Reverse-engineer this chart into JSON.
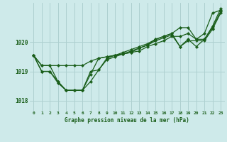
{
  "title": "Graphe pression niveau de la mer (hPa)",
  "bg_color": "#ceeaea",
  "grid_color": "#aed0d0",
  "line_color": "#1a5e1a",
  "xlim": [
    -0.5,
    23.5
  ],
  "ylim": [
    1017.65,
    1021.35
  ],
  "yticks": [
    1018,
    1019,
    1020
  ],
  "xticks": [
    0,
    1,
    2,
    3,
    4,
    5,
    6,
    7,
    8,
    9,
    10,
    11,
    12,
    13,
    14,
    15,
    16,
    17,
    18,
    19,
    20,
    21,
    22,
    23
  ],
  "series": [
    [
      1019.55,
      1019.2,
      1019.2,
      1019.2,
      1019.2,
      1019.2,
      1019.2,
      1019.35,
      1019.45,
      1019.5,
      1019.55,
      1019.6,
      1019.65,
      1019.7,
      1019.85,
      1019.95,
      1020.05,
      1020.2,
      1020.2,
      1020.3,
      1020.1,
      1020.1,
      1020.55,
      1021.15
    ],
    [
      1019.55,
      1019.2,
      1019.2,
      1018.65,
      1018.35,
      1018.35,
      1018.35,
      1018.65,
      1019.05,
      1019.4,
      1019.5,
      1019.6,
      1019.7,
      1019.8,
      1019.9,
      1020.05,
      1020.15,
      1020.25,
      1019.85,
      1020.05,
      1020.05,
      1020.05,
      1020.45,
      1021.0
    ],
    [
      1019.55,
      1019.0,
      1019.0,
      1018.65,
      1018.35,
      1018.35,
      1018.35,
      1018.9,
      1019.45,
      1019.5,
      1019.55,
      1019.6,
      1019.65,
      1019.8,
      1019.9,
      1020.1,
      1020.2,
      1020.3,
      1020.5,
      1020.5,
      1020.1,
      1020.3,
      1021.0,
      1021.1
    ],
    [
      1019.55,
      1019.0,
      1019.0,
      1018.6,
      1018.35,
      1018.35,
      1018.35,
      1019.0,
      1019.05,
      1019.45,
      1019.55,
      1019.65,
      1019.75,
      1019.85,
      1019.95,
      1020.1,
      1020.2,
      1020.3,
      1019.85,
      1020.1,
      1019.85,
      1020.1,
      1020.5,
      1021.05
    ]
  ]
}
